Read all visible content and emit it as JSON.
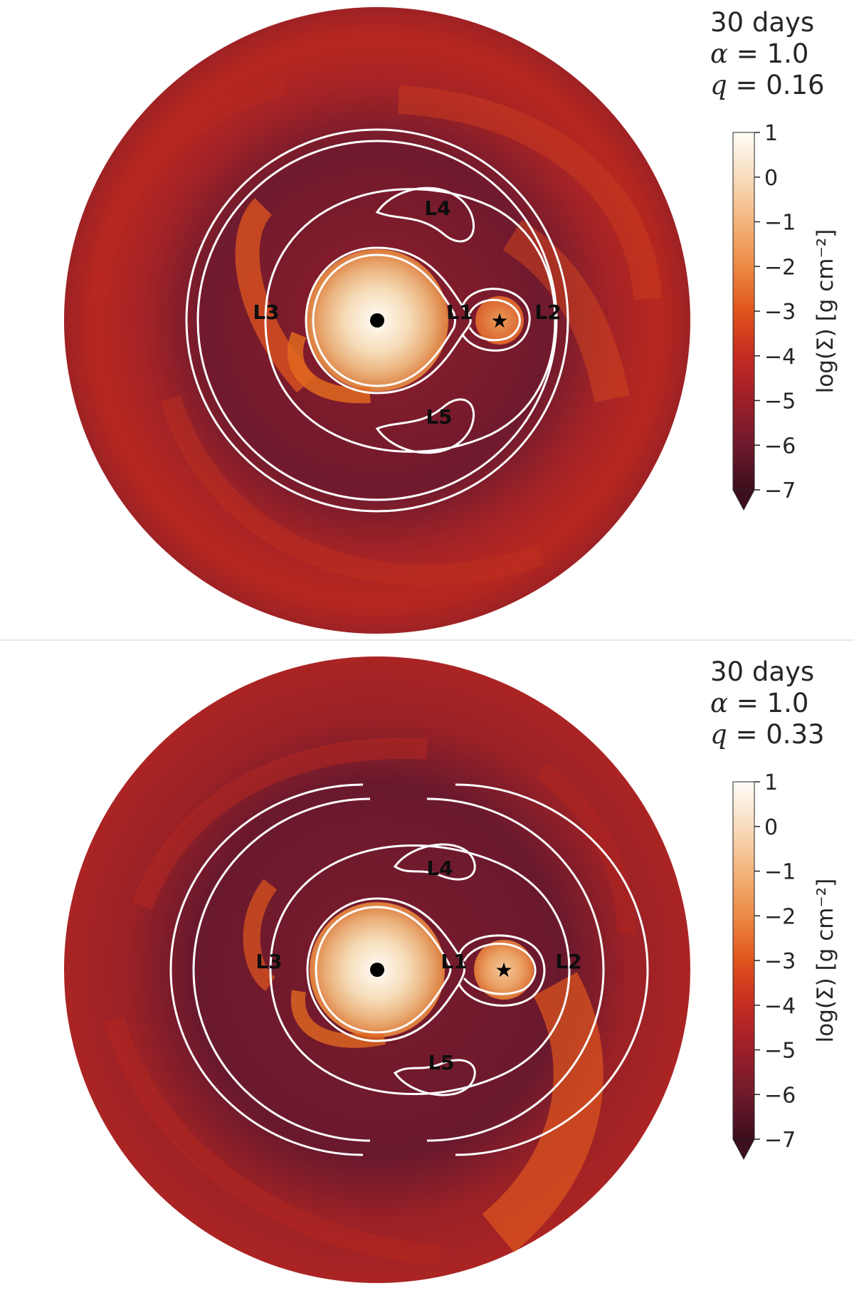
{
  "figure": {
    "panels": [
      {
        "time_label": "30 days",
        "alpha_symbol": "α",
        "alpha_value": "= 1.0",
        "q_symbol": "q",
        "q_value": "= 0.16"
      },
      {
        "time_label": "30 days",
        "alpha_symbol": "α",
        "alpha_value": "= 1.0",
        "q_symbol": "q",
        "q_value": "= 0.33"
      }
    ]
  },
  "chart_data": [
    {
      "type": "heatmap",
      "title": "",
      "description_of_field": "surface density map of circumbinary gas",
      "colorbar": {
        "label": "log(Σ) [g cm⁻²]",
        "ticks": [
          1,
          0,
          -1,
          -2,
          -3,
          -4,
          -5,
          -6,
          -7
        ],
        "tick_labels": [
          "1",
          "0",
          "−1",
          "−2",
          "−3",
          "−4",
          "−5",
          "−6",
          "−7"
        ],
        "range": [
          -7,
          1
        ],
        "extend": "min",
        "colors": [
          "#3d0e1c",
          "#6e1a2c",
          "#9c1f28",
          "#c52b22",
          "#e0541c",
          "#ec8a46",
          "#f3b47c",
          "#f8dcbd",
          "#fffdf8"
        ]
      },
      "lagrange_points": [
        "L1",
        "L2",
        "L3",
        "L4",
        "L5"
      ],
      "mass_ratio_q": 0.16,
      "alpha": 1.0,
      "time_days": 30
    },
    {
      "type": "heatmap",
      "title": "",
      "description_of_field": "surface density map of circumbinary gas",
      "colorbar": {
        "label": "log(Σ) [g cm⁻²]",
        "ticks": [
          1,
          0,
          -1,
          -2,
          -3,
          -4,
          -5,
          -6,
          -7
        ],
        "tick_labels": [
          "1",
          "0",
          "−1",
          "−2",
          "−3",
          "−4",
          "−5",
          "−6",
          "−7"
        ],
        "range": [
          -7,
          1
        ],
        "extend": "min",
        "colors": [
          "#3d0e1c",
          "#6e1a2c",
          "#9c1f28",
          "#c52b22",
          "#e0541c",
          "#ec8a46",
          "#f3b47c",
          "#f8dcbd",
          "#fffdf8"
        ]
      },
      "lagrange_points": [
        "L1",
        "L2",
        "L3",
        "L4",
        "L5"
      ],
      "mass_ratio_q": 0.33,
      "alpha": 1.0,
      "time_days": 30
    }
  ]
}
